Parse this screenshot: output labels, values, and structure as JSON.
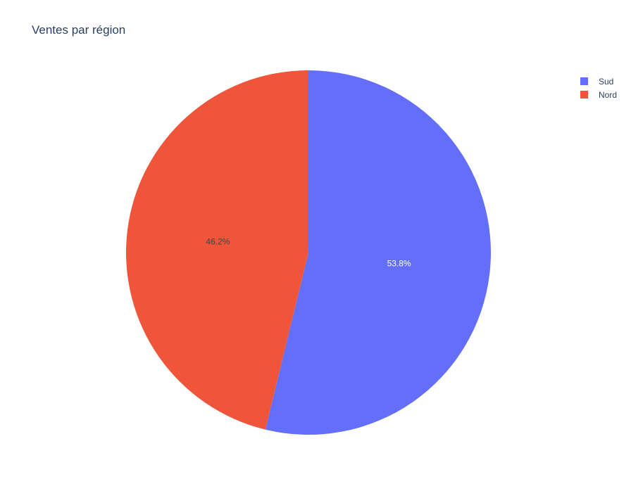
{
  "chart_data": {
    "type": "pie",
    "title": "Ventes par région",
    "slices": [
      {
        "label": "Sud",
        "percent": 53.8,
        "percent_text": "53.8%",
        "color": "#636efa",
        "text_color": "#ffffff"
      },
      {
        "label": "Nord",
        "percent": 46.2,
        "percent_text": "46.2%",
        "color": "#ef553b",
        "text_color": "#444444"
      }
    ],
    "legend_position": "top-right",
    "start_angle_deg": 90,
    "direction": "clockwise"
  }
}
